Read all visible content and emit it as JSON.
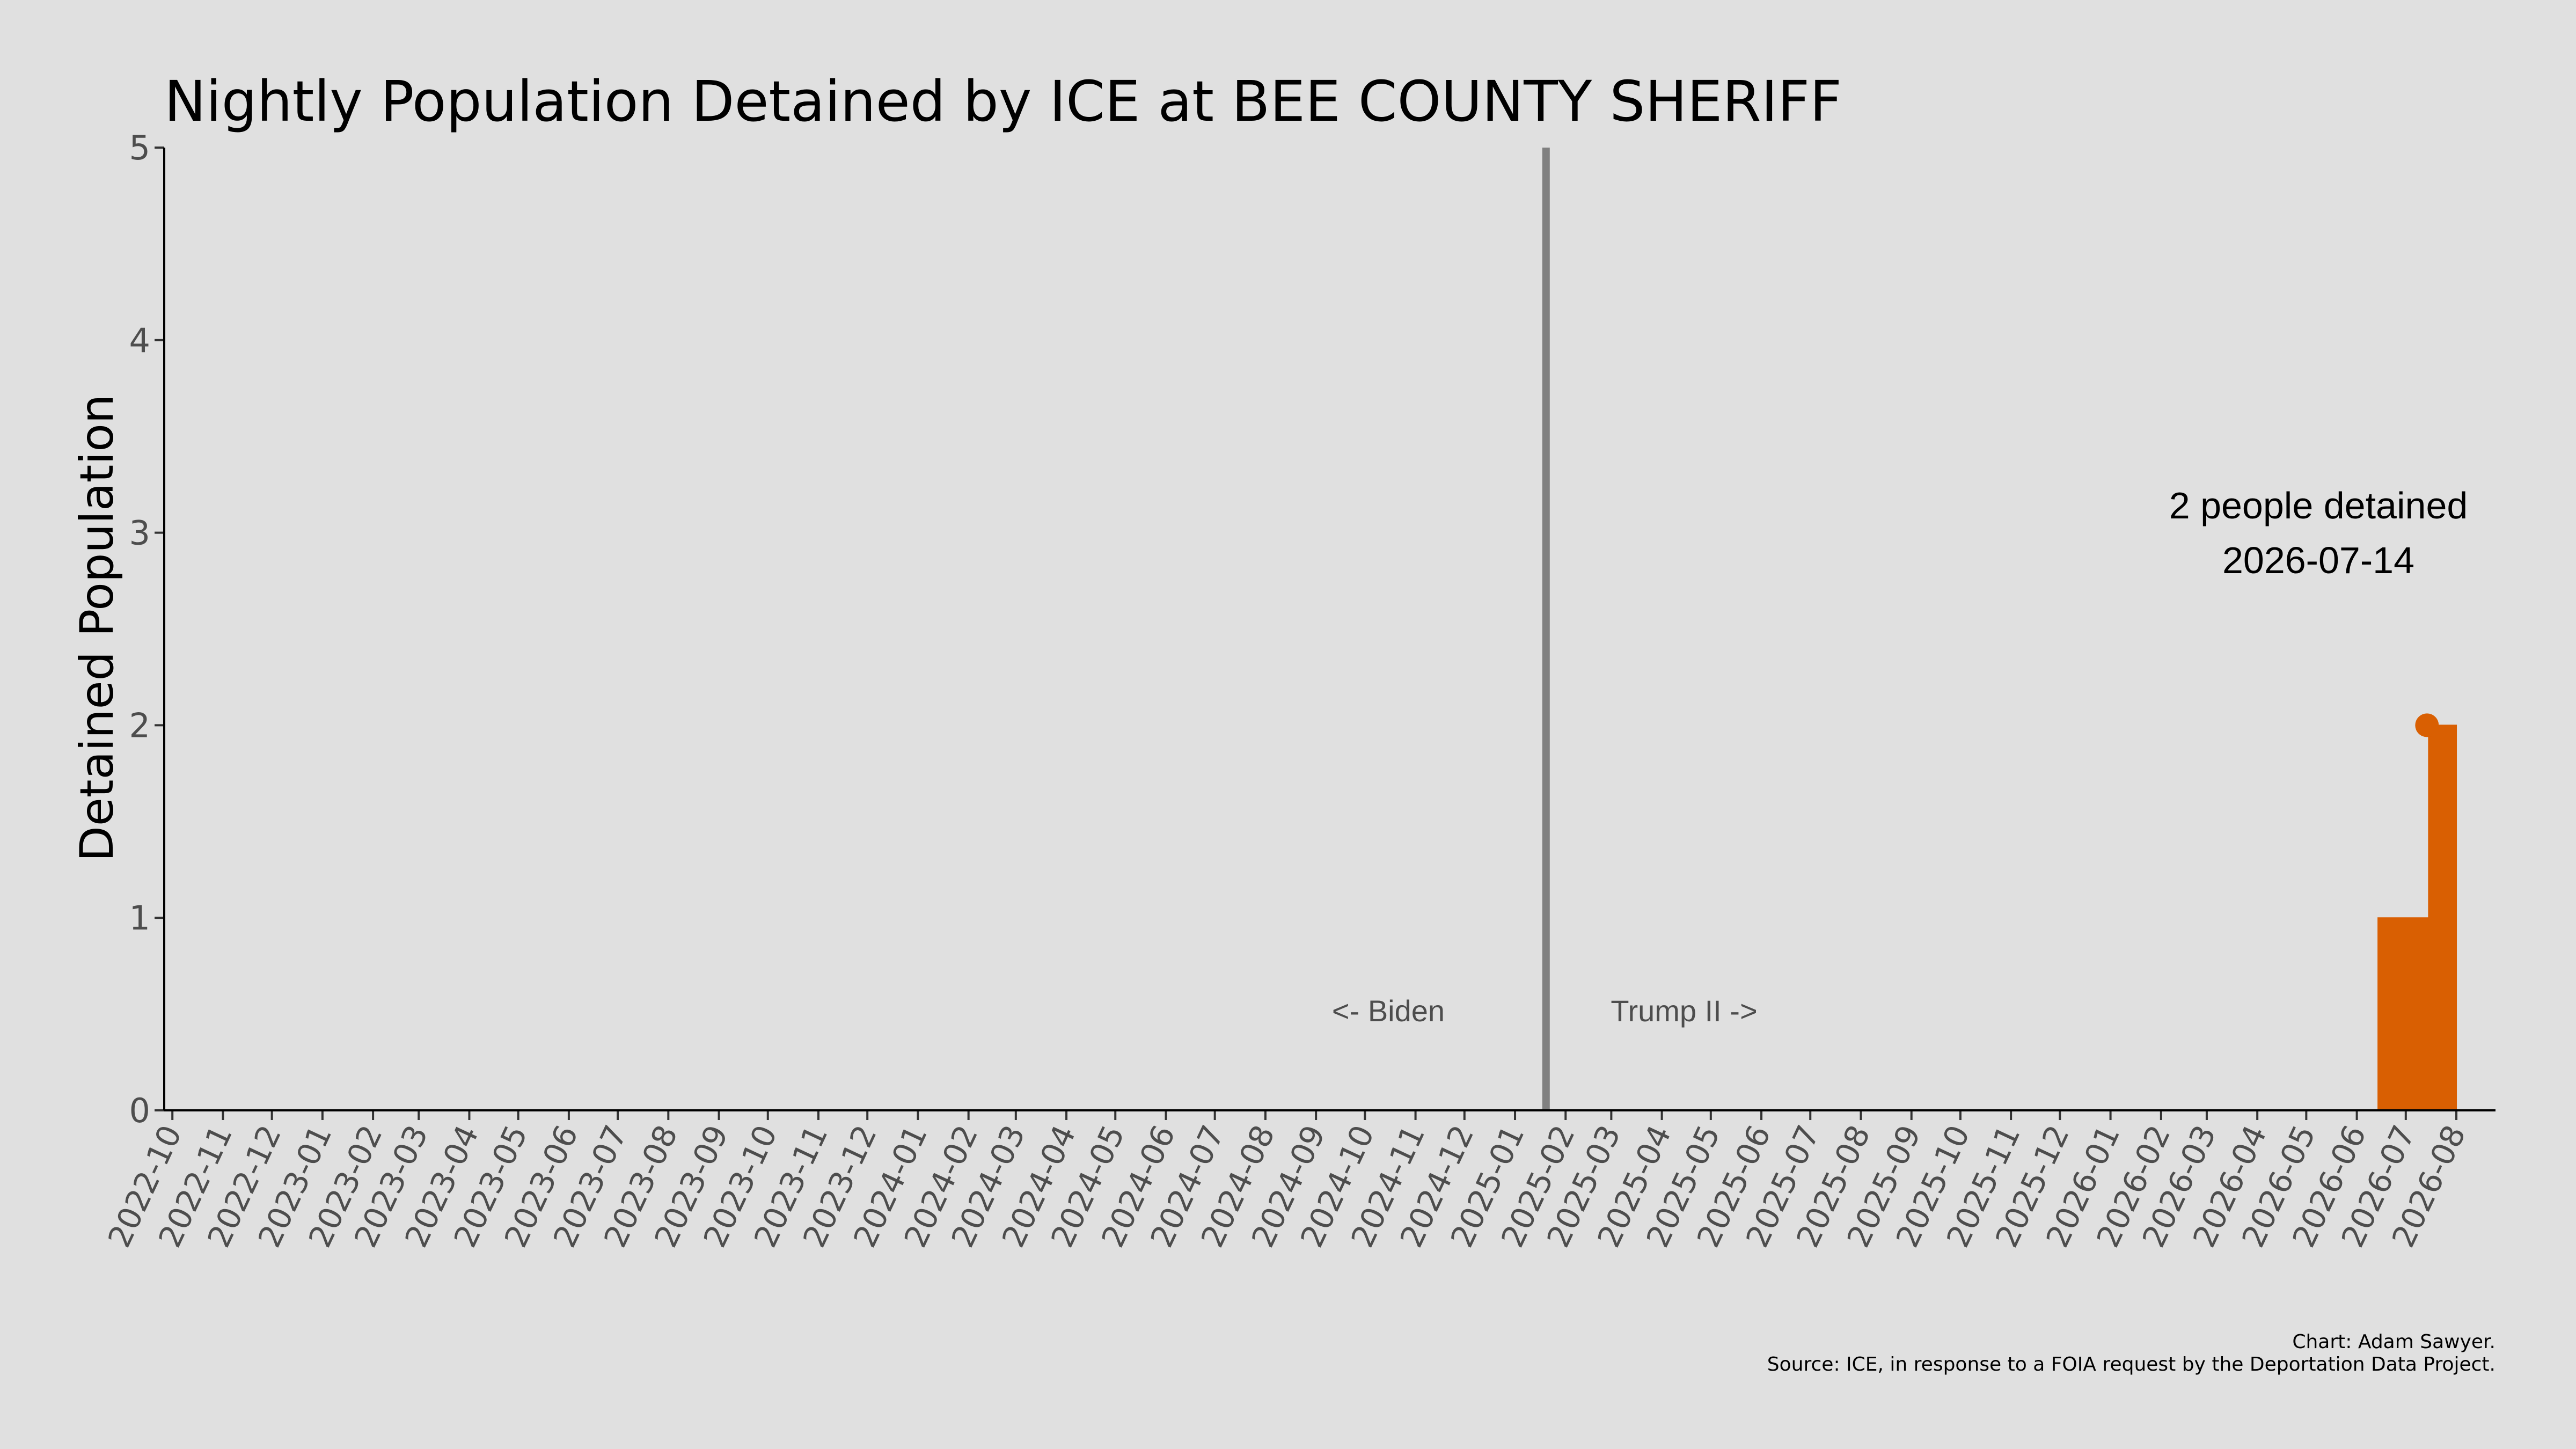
{
  "chart_data": {
    "type": "area",
    "title": "Nightly Population Detained by ICE at BEE COUNTY SHERIFF",
    "ylabel": "Detained Population",
    "xlabel": "",
    "ylim": [
      0,
      5
    ],
    "xlim": [
      "2022-09-26",
      "2026-08-25"
    ],
    "y_ticks": [
      "0",
      "1",
      "2",
      "3",
      "4",
      "5"
    ],
    "x_ticks": [
      "2022-10",
      "2022-11",
      "2022-12",
      "2023-01",
      "2023-02",
      "2023-03",
      "2023-04",
      "2023-05",
      "2023-06",
      "2023-07",
      "2023-08",
      "2023-09",
      "2023-10",
      "2023-11",
      "2023-12",
      "2024-01",
      "2024-02",
      "2024-03",
      "2024-04",
      "2024-05",
      "2024-06",
      "2024-07",
      "2024-08",
      "2024-09",
      "2024-10",
      "2024-11",
      "2024-12",
      "2025-01",
      "2025-02",
      "2025-03",
      "2025-04",
      "2025-05",
      "2025-06",
      "2025-07",
      "2025-08",
      "2025-09",
      "2025-10",
      "2025-11",
      "2025-12",
      "2026-01",
      "2026-02",
      "2026-03",
      "2026-04",
      "2026-05",
      "2026-06",
      "2026-07",
      "2026-08"
    ],
    "series": [
      {
        "color": "#d95f02",
        "points": [
          {
            "x": "2026-06-14",
            "y": 1
          },
          {
            "x": "2026-07-15",
            "y": 2
          },
          {
            "x": "2026-08-01",
            "y": 2
          }
        ]
      }
    ],
    "highlight": {
      "x": "2026-07-14",
      "y": 2,
      "color": "#d95f02"
    },
    "annotation": {
      "line1": "2 people detained",
      "line2": "2026-07-14"
    },
    "divider": {
      "x": "2025-01-20",
      "color": "#808080"
    },
    "era_labels": {
      "left": "<- Biden",
      "right": "Trump II ->"
    },
    "grid": false,
    "caption": {
      "line1": "Chart: Adam Sawyer.",
      "line2": "Source: ICE, in response to a FOIA request by the Deportation Data Project."
    }
  }
}
